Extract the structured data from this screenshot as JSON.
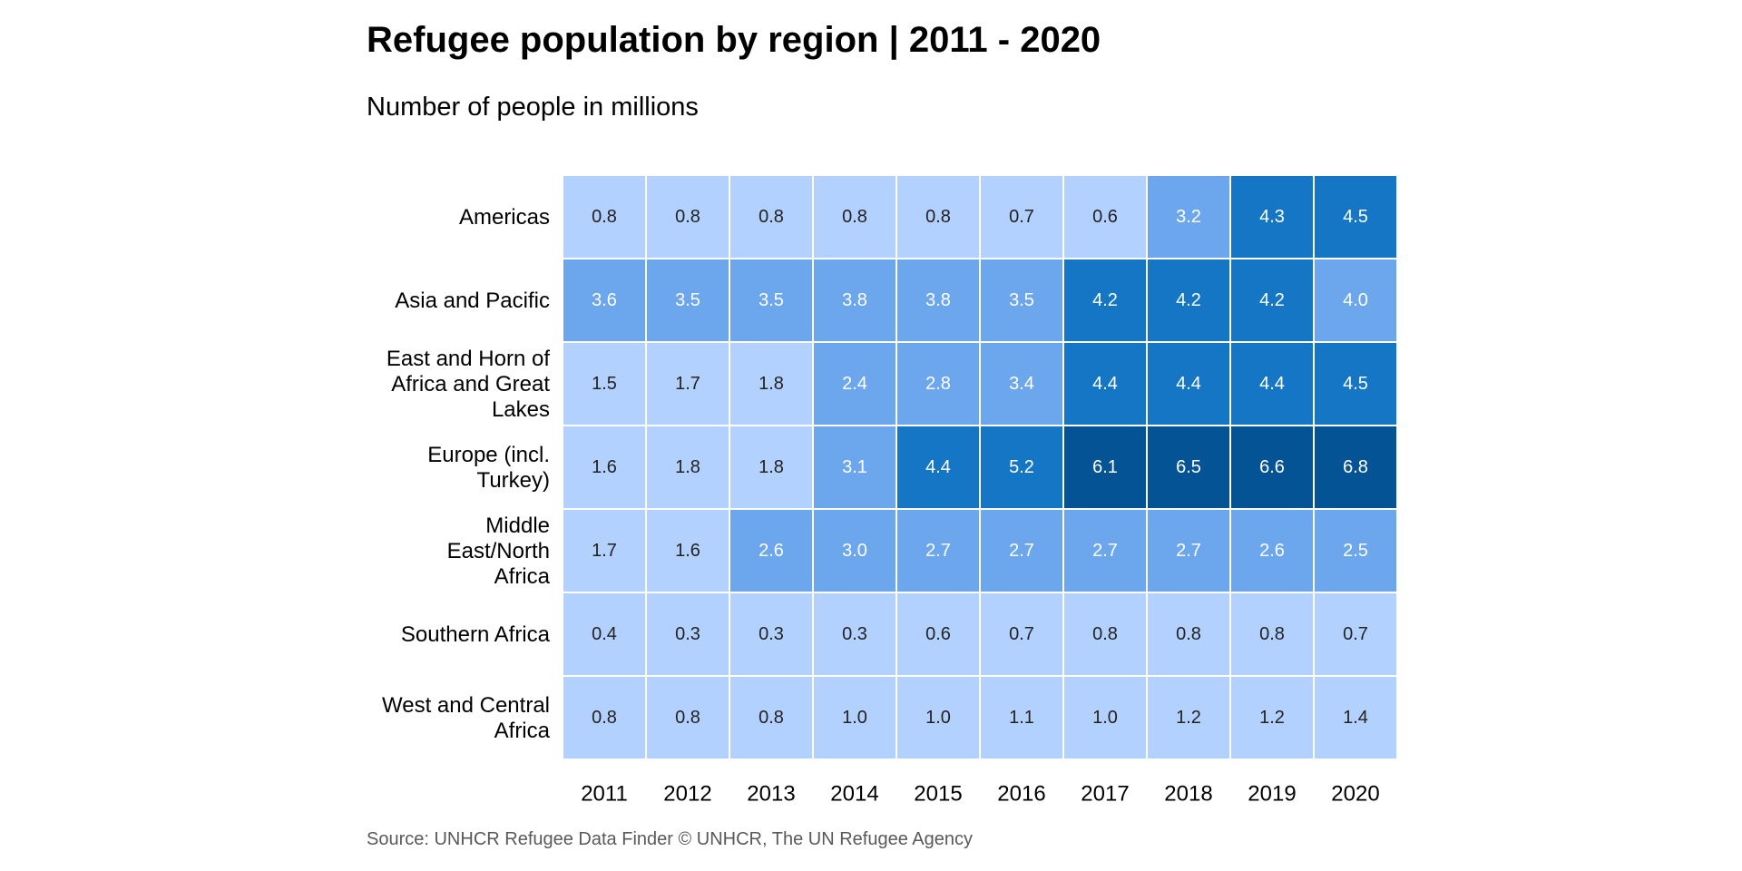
{
  "chart_data": {
    "type": "heatmap",
    "title": "Refugee population by region | 2011 - 2020",
    "subtitle": "Number of people in millions",
    "caption": "Source: UNHCR Refugee Data Finder © UNHCR, The UN Refugee Agency",
    "xlabel": "",
    "ylabel": "",
    "x": [
      "2011",
      "2012",
      "2013",
      "2014",
      "2015",
      "2016",
      "2017",
      "2018",
      "2019",
      "2020"
    ],
    "y": [
      "Americas",
      "Asia and Pacific",
      "East and Horn of Africa and Great Lakes",
      "Europe (incl. Turkey)",
      "Middle East/North Africa",
      "Southern Africa",
      "West and Central Africa"
    ],
    "y_label_lines": [
      [
        "Americas"
      ],
      [
        "Asia and Pacific"
      ],
      [
        "East and Horn of",
        "Africa and Great",
        "Lakes"
      ],
      [
        "Europe (incl.",
        "Turkey)"
      ],
      [
        "Middle",
        "East/North",
        "Africa"
      ],
      [
        "Southern Africa"
      ],
      [
        "West and Central",
        "Africa"
      ]
    ],
    "values": [
      [
        0.8,
        0.8,
        0.8,
        0.8,
        0.8,
        0.7,
        0.6,
        3.2,
        4.3,
        4.5
      ],
      [
        3.6,
        3.5,
        3.5,
        3.8,
        3.8,
        3.5,
        4.2,
        4.2,
        4.2,
        4.0
      ],
      [
        1.5,
        1.7,
        1.8,
        2.4,
        2.8,
        3.4,
        4.4,
        4.4,
        4.4,
        4.5
      ],
      [
        1.6,
        1.8,
        1.8,
        3.1,
        4.4,
        5.2,
        6.1,
        6.5,
        6.6,
        6.8
      ],
      [
        1.7,
        1.6,
        2.6,
        3.0,
        2.7,
        2.7,
        2.7,
        2.7,
        2.6,
        2.5
      ],
      [
        0.4,
        0.3,
        0.3,
        0.3,
        0.6,
        0.7,
        0.8,
        0.8,
        0.8,
        0.7
      ],
      [
        0.8,
        0.8,
        0.8,
        1.0,
        1.0,
        1.1,
        1.0,
        1.2,
        1.2,
        1.4
      ]
    ],
    "color_bins": [
      {
        "max": 2.0,
        "fill": "#b3d1ff",
        "text": "#222222"
      },
      {
        "max": 4.0,
        "fill": "#6ca6ed",
        "text": "#ffffff"
      },
      {
        "max": 6.0,
        "fill": "#1476c4",
        "text": "#ffffff"
      },
      {
        "max": 100,
        "fill": "#045394",
        "text": "#ffffff"
      }
    ]
  }
}
